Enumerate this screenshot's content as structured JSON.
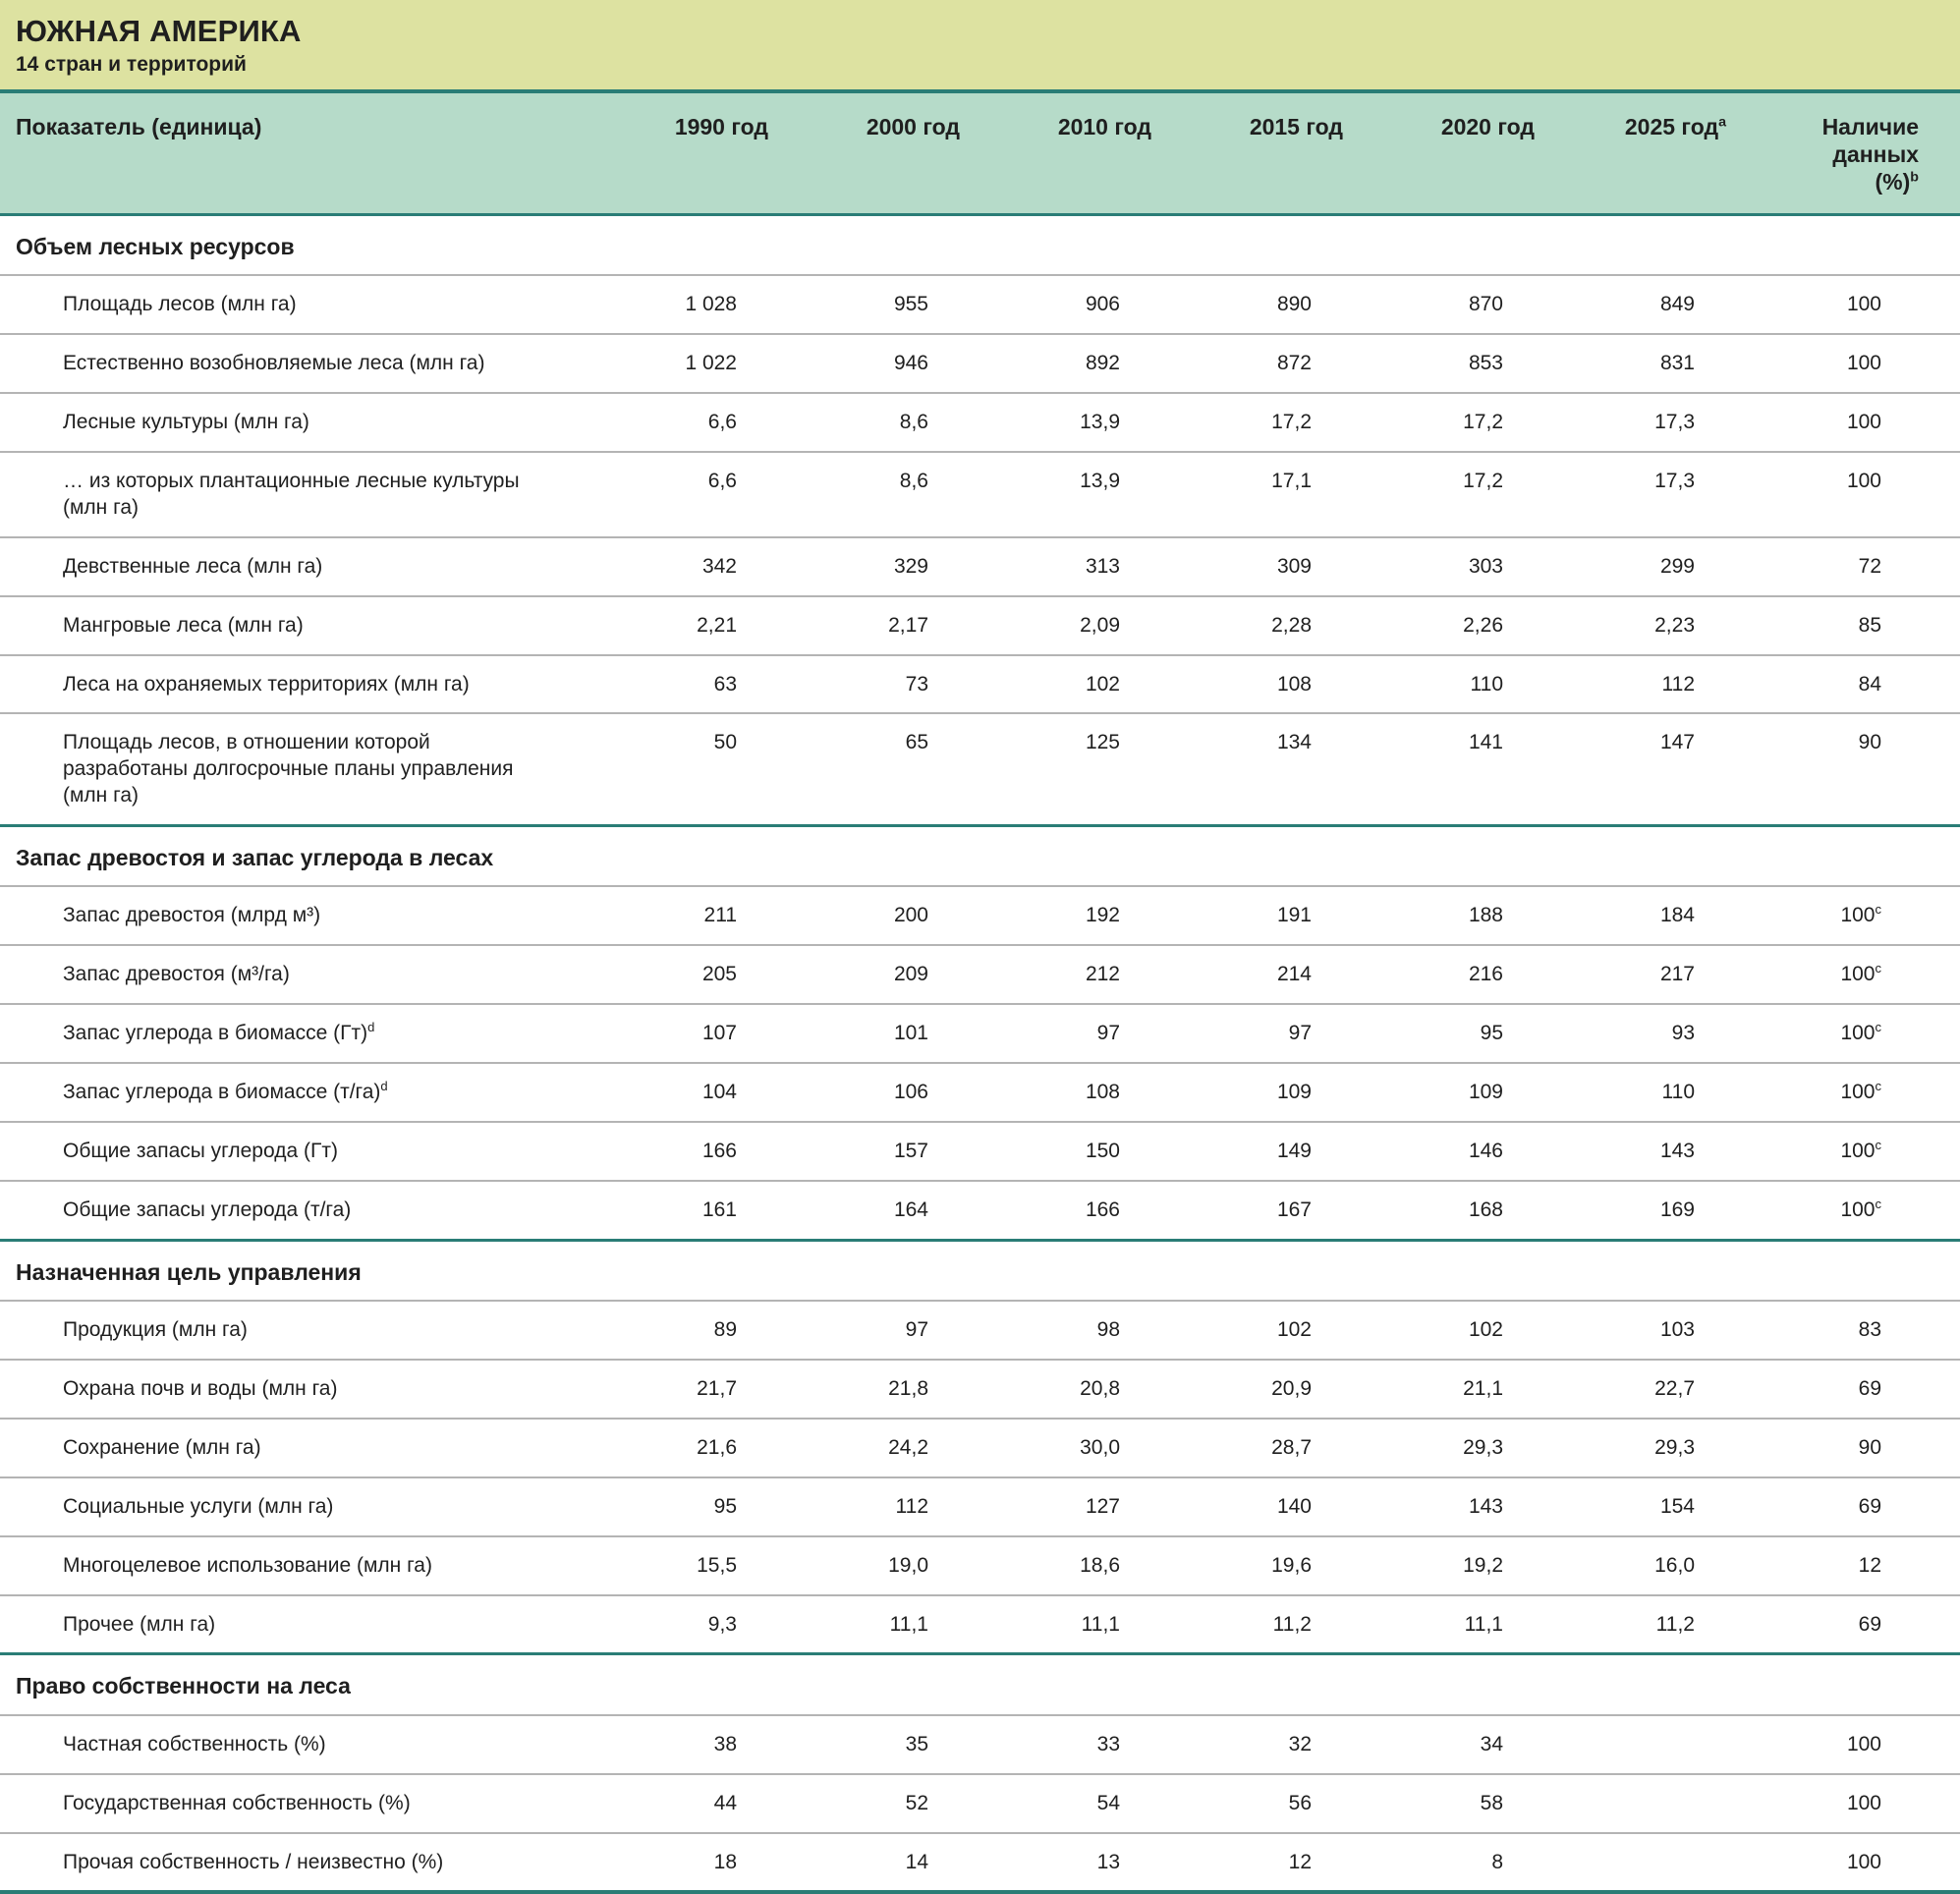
{
  "header": {
    "region": "ЮЖНАЯ АМЕРИКА",
    "subtitle": "14 стран и территорий"
  },
  "colors": {
    "title_band": "#dde2a1",
    "header_band": "#b6dbc9",
    "rule_teal": "#2a7d76",
    "rule_gray": "#b4b4b4",
    "text": "#1f1f1f"
  },
  "table": {
    "indicator_header": "Показатель (единица)",
    "year_headers": [
      "1990 год",
      "2000 год",
      "2010 год",
      "2015 год",
      "2020 год",
      "2025 год^a",
      "Наличие данных (%)^b"
    ],
    "sections": [
      {
        "title": "Объем лесных ресурсов",
        "rows": [
          {
            "label": "Площадь лесов (млн га)",
            "values": [
              "1 028",
              "955",
              "906",
              "890",
              "870",
              "849",
              "100"
            ]
          },
          {
            "label": "Естественно возобновляемые леса (млн га)",
            "values": [
              "1 022",
              "946",
              "892",
              "872",
              "853",
              "831",
              "100"
            ]
          },
          {
            "label": "Лесные культуры (млн га)",
            "values": [
              "6,6",
              "8,6",
              "13,9",
              "17,2",
              "17,2",
              "17,3",
              "100"
            ]
          },
          {
            "label": "… из которых плантационные лесные культуры (млн га)",
            "values": [
              "6,6",
              "8,6",
              "13,9",
              "17,1",
              "17,2",
              "17,3",
              "100"
            ]
          },
          {
            "label": "Девственные леса (млн га)",
            "values": [
              "342",
              "329",
              "313",
              "309",
              "303",
              "299",
              "72"
            ]
          },
          {
            "label": "Мангровые леса (млн га)",
            "values": [
              "2,21",
              "2,17",
              "2,09",
              "2,28",
              "2,26",
              "2,23",
              "85"
            ]
          },
          {
            "label": "Леса на охраняемых территориях (млн га)",
            "values": [
              "63",
              "73",
              "102",
              "108",
              "110",
              "112",
              "84"
            ]
          },
          {
            "label": "Площадь лесов, в отношении которой разработаны долгосрочные планы управления (млн га)",
            "values": [
              "50",
              "65",
              "125",
              "134",
              "141",
              "147",
              "90"
            ]
          }
        ]
      },
      {
        "title": "Запас древостоя и запас углерода в лесах",
        "rows": [
          {
            "label": "Запас древостоя (млрд м³)",
            "values": [
              "211",
              "200",
              "192",
              "191",
              "188",
              "184",
              "100^c"
            ]
          },
          {
            "label": "Запас древостоя (м³/га)",
            "values": [
              "205",
              "209",
              "212",
              "214",
              "216",
              "217",
              "100^c"
            ]
          },
          {
            "label": "Запас углерода в биомассе (Гт)^d",
            "values": [
              "107",
              "101",
              "97",
              "97",
              "95",
              "93",
              "100^c"
            ]
          },
          {
            "label": "Запас углерода в биомассе (т/га)^d",
            "values": [
              "104",
              "106",
              "108",
              "109",
              "109",
              "110",
              "100^c"
            ]
          },
          {
            "label": "Общие запасы углерода (Гт)",
            "values": [
              "166",
              "157",
              "150",
              "149",
              "146",
              "143",
              "100^c"
            ]
          },
          {
            "label": "Общие запасы углерода (т/га)",
            "values": [
              "161",
              "164",
              "166",
              "167",
              "168",
              "169",
              "100^c"
            ]
          }
        ]
      },
      {
        "title": "Назначенная цель управления",
        "rows": [
          {
            "label": "Продукция (млн га)",
            "values": [
              "89",
              "97",
              "98",
              "102",
              "102",
              "103",
              "83"
            ]
          },
          {
            "label": "Охрана почв и воды (млн га)",
            "values": [
              "21,7",
              "21,8",
              "20,8",
              "20,9",
              "21,1",
              "22,7",
              "69"
            ]
          },
          {
            "label": "Сохранение (млн га)",
            "values": [
              "21,6",
              "24,2",
              "30,0",
              "28,7",
              "29,3",
              "29,3",
              "90"
            ]
          },
          {
            "label": "Социальные услуги (млн га)",
            "values": [
              "95",
              "112",
              "127",
              "140",
              "143",
              "154",
              "69"
            ]
          },
          {
            "label": "Многоцелевое использование (млн га)",
            "values": [
              "15,5",
              "19,0",
              "18,6",
              "19,6",
              "19,2",
              "16,0",
              "12"
            ]
          },
          {
            "label": "Прочее (млн га)",
            "values": [
              "9,3",
              "11,1",
              "11,1",
              "11,2",
              "11,1",
              "11,2",
              "69"
            ]
          }
        ]
      },
      {
        "title": "Право собственности на леса",
        "rows": [
          {
            "label": "Частная собственность (%)",
            "values": [
              "38",
              "35",
              "33",
              "32",
              "34",
              "",
              "100"
            ]
          },
          {
            "label": "Государственная собственность (%)",
            "values": [
              "44",
              "52",
              "54",
              "56",
              "58",
              "",
              "100"
            ]
          },
          {
            "label": "Прочая собственность / неизвестно (%)",
            "values": [
              "18",
              "14",
              "13",
              "12",
              "8",
              "",
              "100"
            ]
          }
        ]
      }
    ]
  }
}
